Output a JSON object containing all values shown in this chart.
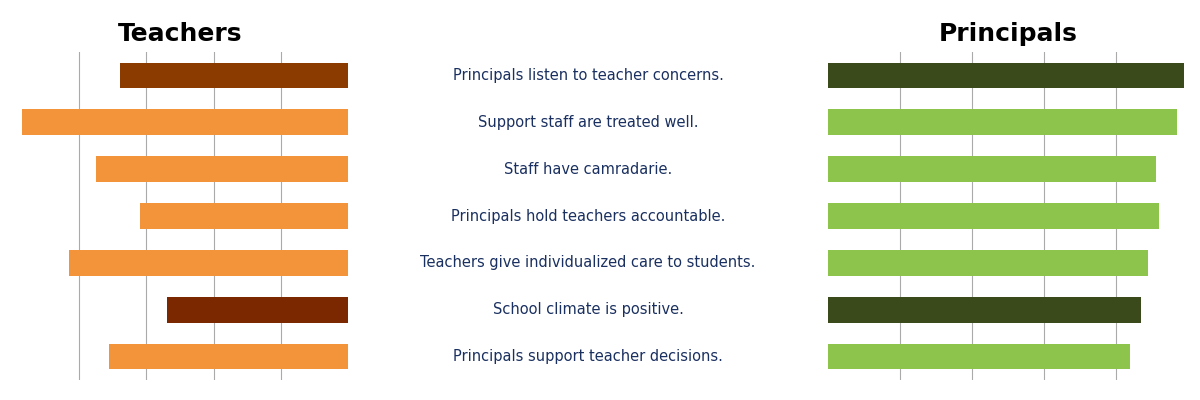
{
  "labels": [
    "Principals listen to teacher concerns.",
    "Support staff are treated well.",
    "Staff have camradarie.",
    "Principals hold teachers accountable.",
    "Teachers give individualized care to students.",
    "School climate is positive.",
    "Principals support teacher decisions."
  ],
  "teachers_values": [
    3.4,
    4.85,
    3.75,
    3.1,
    4.15,
    2.7,
    3.55
  ],
  "principals_values": [
    4.95,
    4.85,
    4.55,
    4.6,
    4.45,
    4.35,
    4.2
  ],
  "teachers_colors": [
    "#8B3A00",
    "#F4943A",
    "#F4943A",
    "#F4943A",
    "#F4943A",
    "#7B2800",
    "#F4943A"
  ],
  "principals_colors": [
    "#3B4A1A",
    "#8DC44B",
    "#8DC44B",
    "#8DC44B",
    "#8DC44B",
    "#3B4A1A",
    "#8DC44B"
  ],
  "teachers_title": "Teachers",
  "principals_title": "Principals",
  "xlim_teachers": [
    0,
    5
  ],
  "xlim_principals": [
    0,
    5
  ],
  "background_color": "#ffffff",
  "title_fontsize": 18,
  "label_fontsize": 10.5,
  "bar_height": 0.55,
  "gridline_color": "#aaaaaa",
  "grid_values": [
    1,
    2,
    3,
    4
  ]
}
